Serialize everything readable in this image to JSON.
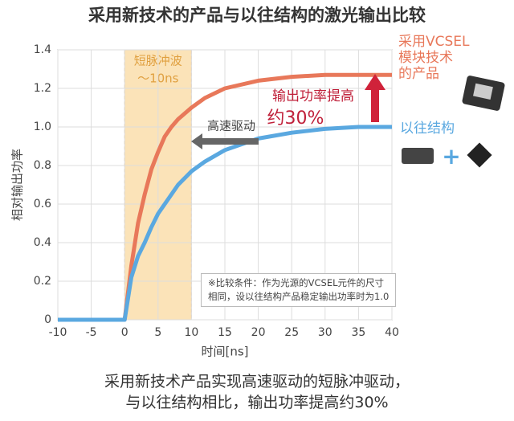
{
  "chart_data": {
    "type": "line",
    "title": "采用新技术的产品与以往结构的激光输出比较",
    "x_label": "时间[ns]",
    "y_label": "相对输出功率",
    "x": [
      -10,
      0,
      1,
      2,
      3,
      4,
      5,
      6,
      7,
      8,
      10,
      12,
      15,
      20,
      25,
      30,
      35,
      40
    ],
    "series": [
      {
        "name": "采用VCSEL\n模块技术\n的产品",
        "color": "#e8785a",
        "values": [
          0,
          0,
          0.28,
          0.5,
          0.65,
          0.78,
          0.87,
          0.95,
          1.0,
          1.04,
          1.1,
          1.15,
          1.2,
          1.24,
          1.26,
          1.27,
          1.27,
          1.27
        ]
      },
      {
        "name": "以往结构",
        "color": "#5aa8e0",
        "values": [
          0,
          0,
          0.22,
          0.33,
          0.4,
          0.48,
          0.55,
          0.6,
          0.65,
          0.7,
          0.77,
          0.82,
          0.88,
          0.94,
          0.97,
          0.99,
          1.0,
          1.0
        ]
      }
    ],
    "xlim": [
      -10,
      40
    ],
    "xticks": [
      -10,
      -5,
      0,
      5,
      10,
      15,
      20,
      25,
      30,
      35,
      40
    ],
    "ylim": [
      0,
      1.4
    ],
    "yticks": [
      0,
      0.2,
      0.4,
      0.6,
      0.8,
      {
        "value": 1,
        "label": "1.0"
      },
      1.2,
      1.4
    ],
    "grid": true,
    "highlight_band": [
      0,
      10
    ],
    "band_label": [
      "短脉冲波",
      "～10ns"
    ],
    "annotations": [
      "输出功率提高",
      "约30%",
      "高速驱动"
    ],
    "note": "※比较条件：作为光源的VCSEL元件的尺寸\n相同，设以往结构产品稳定输出功率时为1.0",
    "caption": [
      "采用新技术产品实现高速驱动的短脉冲驱动，",
      "与以往结构相比，输出功率提高约30%"
    ]
  }
}
